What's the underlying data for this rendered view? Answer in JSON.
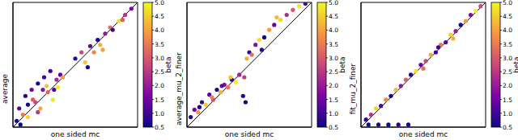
{
  "chart_data": [
    {
      "type": "scatter",
      "x_label": "one sided mc",
      "y_label": "average",
      "xlim": [
        0,
        1
      ],
      "ylim": [
        0,
        1
      ],
      "tick_labels": false,
      "x": [
        0.03,
        0.05,
        0.08,
        0.1,
        0.12,
        0.15,
        0.18,
        0.2,
        0.22,
        0.25,
        0.28,
        0.3,
        0.32,
        0.35,
        0.38,
        0.4,
        0.12,
        0.2,
        0.27,
        0.33,
        0.06,
        0.16,
        0.24,
        0.36,
        0.5,
        0.55,
        0.58,
        0.62,
        0.65,
        0.68,
        0.7,
        0.74,
        0.78,
        0.8,
        0.85,
        0.9,
        0.95,
        0.6,
        0.72,
        0.88
      ],
      "y": [
        0.05,
        0.15,
        0.1,
        0.25,
        0.08,
        0.3,
        0.2,
        0.35,
        0.15,
        0.4,
        0.28,
        0.45,
        0.22,
        0.38,
        0.42,
        0.4,
        0.18,
        0.12,
        0.33,
        0.3,
        0.02,
        0.22,
        0.3,
        0.32,
        0.55,
        0.6,
        0.52,
        0.65,
        0.6,
        0.7,
        0.66,
        0.75,
        0.8,
        0.78,
        0.85,
        0.9,
        0.95,
        0.48,
        0.62,
        0.86
      ],
      "beta": [
        0.6,
        1.2,
        3.5,
        0.8,
        4.6,
        1.5,
        2.8,
        0.7,
        4.1,
        1.0,
        3.2,
        0.9,
        4.8,
        2.2,
        1.3,
        3.9,
        0.6,
        2.5,
        4.4,
        1.1,
        0.5,
        3.0,
        1.8,
        4.9,
        0.8,
        2.7,
        4.5,
        1.4,
        3.6,
        0.7,
        4.2,
        1.9,
        3.3,
        0.9,
        4.7,
        2.4,
        1.6,
        0.6,
        4.0,
        3.1
      ],
      "colorbar": {
        "label": "beta",
        "range": [
          0.5,
          5.0
        ],
        "ticks": [
          0.5,
          {
            "value": 1,
            "label": "1.0"
          },
          1.5,
          {
            "value": 2,
            "label": "2.0"
          },
          2.5,
          {
            "value": 3,
            "label": "3.0"
          },
          3.5,
          {
            "value": 4,
            "label": "4.0"
          },
          4.5,
          {
            "value": 5,
            "label": "5.0"
          }
        ]
      }
    },
    {
      "type": "scatter",
      "x_label": "one sided mc",
      "y_label": "average_mu_2_finer",
      "xlim": [
        0,
        1
      ],
      "ylim": [
        0,
        1
      ],
      "tick_labels": false,
      "x": [
        0.03,
        0.06,
        0.09,
        0.12,
        0.15,
        0.18,
        0.21,
        0.24,
        0.27,
        0.3,
        0.33,
        0.36,
        0.39,
        0.42,
        0.1,
        0.2,
        0.28,
        0.35,
        0.45,
        0.46,
        0.48,
        0.5,
        0.52,
        0.55,
        0.58,
        0.62,
        0.66,
        0.7,
        0.75,
        0.8,
        0.85,
        0.9,
        0.95,
        0.6,
        0.72,
        0.47
      ],
      "y": [
        0.08,
        0.14,
        0.12,
        0.2,
        0.18,
        0.26,
        0.22,
        0.3,
        0.28,
        0.34,
        0.32,
        0.38,
        0.36,
        0.42,
        0.16,
        0.24,
        0.33,
        0.4,
        0.25,
        0.4,
        0.55,
        0.6,
        0.58,
        0.66,
        0.7,
        0.72,
        0.78,
        0.82,
        0.86,
        0.9,
        0.94,
        0.97,
        0.99,
        0.62,
        0.88,
        0.2
      ],
      "beta": [
        0.7,
        1.5,
        3.8,
        0.9,
        4.5,
        1.2,
        2.9,
        0.6,
        4.2,
        1.7,
        3.4,
        0.8,
        4.9,
        2.1,
        0.6,
        3.6,
        1.3,
        4.4,
        0.7,
        2.6,
        4.1,
        0.9,
        3.3,
        1.8,
        4.7,
        0.6,
        3.9,
        1.4,
        4.6,
        2.3,
        3.0,
        4.8,
        1.1,
        0.8,
        4.3,
        0.5
      ],
      "colorbar": {
        "label": "beta",
        "range": [
          0.5,
          5.0
        ],
        "ticks": [
          0.5,
          {
            "value": 1,
            "label": "1.0"
          },
          1.5,
          {
            "value": 2,
            "label": "2.0"
          },
          2.5,
          {
            "value": 3,
            "label": "3.0"
          },
          3.5,
          {
            "value": 4,
            "label": "4.0"
          },
          4.5,
          {
            "value": 5,
            "label": "5.0"
          }
        ]
      }
    },
    {
      "type": "scatter",
      "x_label": "one sided mc",
      "y_label": "fit_mu_2_finer",
      "xlim": [
        0,
        1
      ],
      "ylim": [
        0,
        1
      ],
      "tick_labels": false,
      "x": [
        0.04,
        0.08,
        0.12,
        0.16,
        0.2,
        0.24,
        0.28,
        0.32,
        0.36,
        0.4,
        0.44,
        0.48,
        0.52,
        0.56,
        0.6,
        0.64,
        0.68,
        0.72,
        0.76,
        0.8,
        0.84,
        0.88,
        0.92,
        0.96,
        0.06,
        0.14,
        0.22,
        0.3,
        0.38,
        0.5,
        0.62,
        0.74
      ],
      "y": [
        0.06,
        0.1,
        0.15,
        0.17,
        0.22,
        0.25,
        0.3,
        0.33,
        0.38,
        0.42,
        0.45,
        0.5,
        0.53,
        0.58,
        0.6,
        0.66,
        0.68,
        0.74,
        0.77,
        0.82,
        0.85,
        0.9,
        0.93,
        0.97,
        0.02,
        0.02,
        0.02,
        0.02,
        0.02,
        0.47,
        0.64,
        0.71
      ],
      "beta": [
        0.8,
        2.4,
        4.6,
        1.1,
        3.7,
        0.6,
        4.3,
        1.9,
        3.1,
        0.7,
        4.8,
        1.5,
        2.7,
        4.1,
        0.9,
        3.5,
        1.3,
        4.5,
        2.0,
        0.6,
        3.9,
        1.7,
        4.9,
        2.8,
        0.6,
        0.7,
        0.5,
        0.8,
        0.6,
        3.3,
        1.0,
        4.2
      ],
      "colorbar": {
        "label": "beta",
        "range": [
          0.5,
          5.0
        ],
        "ticks": [
          0.5,
          {
            "value": 1,
            "label": "1.0"
          },
          1.5,
          {
            "value": 2,
            "label": "2.0"
          },
          2.5,
          {
            "value": 3,
            "label": "3.0"
          },
          3.5,
          {
            "value": 4,
            "label": "4.0"
          },
          4.5,
          {
            "value": 5,
            "label": "5.0"
          }
        ]
      }
    }
  ]
}
